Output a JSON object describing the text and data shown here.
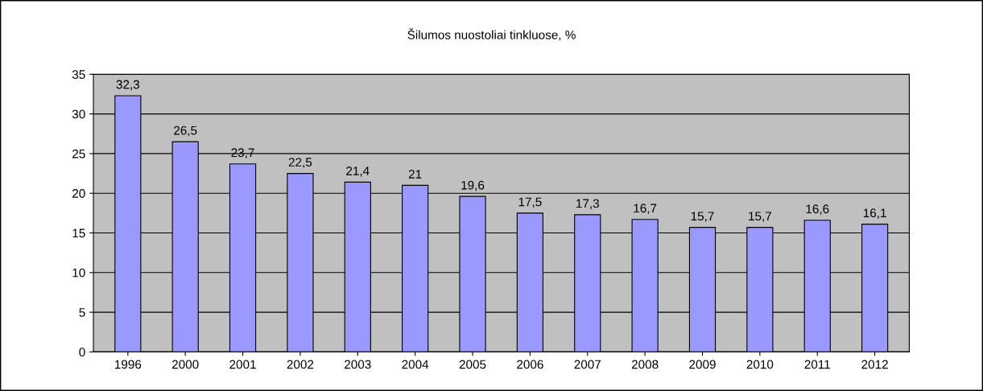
{
  "chart_data": {
    "type": "bar",
    "title": "Šilumos nuostoliai tinkluose, %",
    "categories": [
      "1996",
      "2000",
      "2001",
      "2002",
      "2003",
      "2004",
      "2005",
      "2006",
      "2007",
      "2008",
      "2009",
      "2010",
      "2011",
      "2012"
    ],
    "values": [
      32.3,
      26.5,
      23.7,
      22.5,
      21.4,
      21,
      19.6,
      17.5,
      17.3,
      16.7,
      15.7,
      15.7,
      16.6,
      16.1
    ],
    "value_labels": [
      "32,3",
      "26,5",
      "23,7",
      "22,5",
      "21,4",
      "21",
      "19,6",
      "17,5",
      "17,3",
      "16,7",
      "15,7",
      "15,7",
      "16,6",
      "16,1"
    ],
    "color": "#9999ff",
    "ylim": [
      0,
      35
    ],
    "yticks": [
      0,
      5,
      10,
      15,
      20,
      25,
      30,
      35
    ],
    "grid": "y",
    "legend": false
  }
}
